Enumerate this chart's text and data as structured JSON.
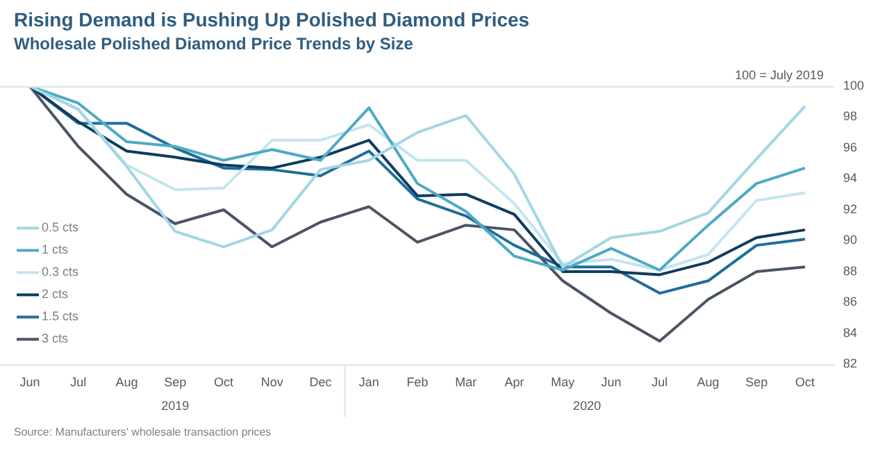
{
  "chart_data": {
    "type": "line",
    "title": "Rising Demand is Pushing Up Polished Diamond Prices",
    "subtitle": "Wholesale Polished Diamond Price Trends by Size",
    "categories": [
      "Jun",
      "Jul",
      "Aug",
      "Sep",
      "Oct",
      "Nov",
      "Dec",
      "Jan",
      "Feb",
      "Mar",
      "Apr",
      "May",
      "Jun",
      "Jul",
      "Aug",
      "Sep",
      "Oct"
    ],
    "series": [
      {
        "name": "0.5 cts",
        "color": "#a3d6e3",
        "values": [
          100,
          98.5,
          94.8,
          90.6,
          89.6,
          90.7,
          94.6,
          95.2,
          97,
          98.1,
          94.3,
          88.3,
          90.2,
          90.6,
          91.8,
          95.3,
          98.7
        ]
      },
      {
        "name": "1 cts",
        "color": "#4fa9c4",
        "values": [
          100,
          98.9,
          96.4,
          96.1,
          95.2,
          95.9,
          95.2,
          98.6,
          93.7,
          91.9,
          89,
          88.1,
          89.5,
          88.1,
          91,
          93.7,
          94.7
        ]
      },
      {
        "name": "0.3 cts",
        "color": "#c3e5ee",
        "values": [
          100,
          98.5,
          94.9,
          93.3,
          93.4,
          96.5,
          96.5,
          97.5,
          95.2,
          95.2,
          92.4,
          88.5,
          88.8,
          88.1,
          89.1,
          92.6,
          93.1
        ]
      },
      {
        "name": "2 cts",
        "color": "#0e3d5f",
        "values": [
          100,
          97.7,
          95.8,
          95.4,
          94.9,
          94.7,
          95.4,
          96.5,
          92.9,
          93,
          91.7,
          88,
          88,
          87.8,
          88.6,
          90.2,
          90.7
        ]
      },
      {
        "name": "1.5 cts",
        "color": "#1d6e99",
        "values": [
          100,
          97.6,
          97.6,
          96,
          94.7,
          94.6,
          94.2,
          95.8,
          92.7,
          91.6,
          89.7,
          88.3,
          88.3,
          86.6,
          87.4,
          89.7,
          90.1
        ]
      },
      {
        "name": "3 cts",
        "color": "#4b5465",
        "values": [
          100,
          96.1,
          93,
          91.1,
          92,
          89.6,
          91.2,
          92.2,
          89.9,
          91,
          90.7,
          87.4,
          85.3,
          83.5,
          86.2,
          88,
          88.3
        ]
      }
    ],
    "ylim": [
      82,
      100
    ],
    "yticks": [
      82,
      84,
      86,
      88,
      90,
      92,
      94,
      96,
      98,
      100
    ],
    "grid": false,
    "legend": "bottom left",
    "marker": "none",
    "line_style": "solid",
    "annotations": [
      "100 = July 2019",
      "2019",
      "2020",
      "Source: Manufacturers' wholesale transaction prices"
    ]
  }
}
